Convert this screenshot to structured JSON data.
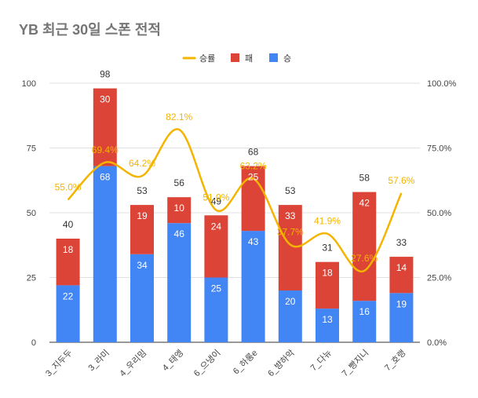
{
  "chart_data": {
    "type": "bar",
    "title": "YB 최근 30일 스폰 전적",
    "legend_position": "top",
    "categories": [
      "3_지두두",
      "3_라미",
      "4_우리밈",
      "4_태엥",
      "6_으냉이",
      "6_하롱e",
      "6_뱡하악",
      "7_다뉴",
      "7_빵지니",
      "7_호랭"
    ],
    "series": [
      {
        "name": "승",
        "type": "bar",
        "stack": true,
        "color": "#4285f4",
        "values": [
          22,
          68,
          34,
          46,
          25,
          43,
          20,
          13,
          16,
          19
        ]
      },
      {
        "name": "패",
        "type": "bar",
        "stack": true,
        "color": "#db4437",
        "values": [
          18,
          30,
          19,
          10,
          24,
          25,
          33,
          18,
          42,
          14
        ]
      },
      {
        "name": "승률",
        "type": "line",
        "axis": "right",
        "color": "#f4b400",
        "values": [
          55.0,
          69.4,
          64.2,
          82.1,
          51.0,
          63.2,
          37.7,
          41.9,
          27.6,
          57.6
        ]
      }
    ],
    "totals": [
      40,
      98,
      53,
      56,
      49,
      68,
      53,
      31,
      58,
      33
    ],
    "rate_labels": [
      "55.0%",
      "69.4%",
      "64.2%",
      "82.1%",
      "51.0%",
      "63.2%",
      "37.7%",
      "41.9%",
      "27.6%",
      "57.6%"
    ],
    "y_left": {
      "min": 0,
      "max": 100,
      "ticks": [
        "0",
        "25",
        "50",
        "75",
        "100"
      ]
    },
    "y_right": {
      "min": 0,
      "max": 100,
      "ticks": [
        "0.0%",
        "25.0%",
        "50.0%",
        "75.0%",
        "100.0%"
      ]
    },
    "grid": true
  }
}
